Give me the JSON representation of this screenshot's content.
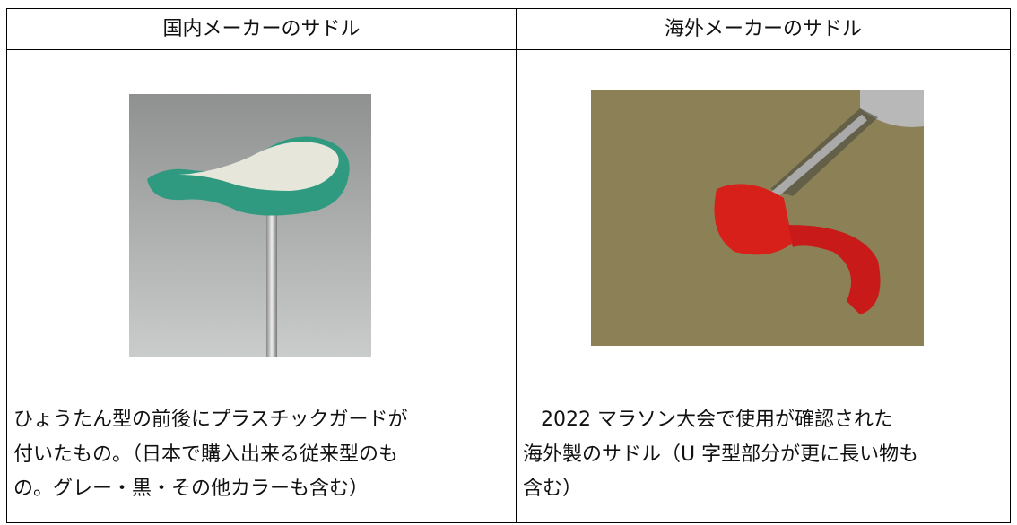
{
  "table": {
    "header": [
      "国内メーカーのサドル",
      "海外メーカーのサドル"
    ],
    "rows": [
      [
        [
          "ひょうたん型の前後にプラスチックガードが",
          "付いたもの。（日本で購入出来る従来型のも",
          "の。グレー・黒・その他カラーも含む）"
        ],
        [
          "2022 マラソン大会で使用が確認された",
          "海外製のサドル（U 字型部分が更に長い物も",
          "含む）"
        ]
      ]
    ]
  }
}
